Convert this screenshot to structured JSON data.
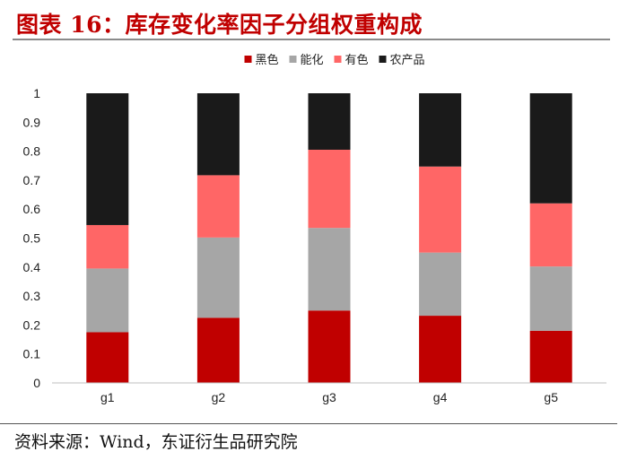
{
  "title": "图表 16：库存变化率因子分组权重构成",
  "source": "资料来源：Wind，东证衍生品研究院",
  "colors": {
    "title": "#c00000",
    "黑色": "#c00000",
    "能化": "#a6a6a6",
    "有色": "#ff6666",
    "农产品": "#1a1a1a"
  },
  "chart_data": {
    "type": "bar",
    "stacked": true,
    "title": "",
    "xlabel": "",
    "ylabel": "",
    "ylim": [
      0,
      1
    ],
    "yticks": [
      "0",
      "0.1",
      "0.2",
      "0.3",
      "0.4",
      "0.5",
      "0.6",
      "0.7",
      "0.8",
      "0.9",
      "1"
    ],
    "categories": [
      "g1",
      "g2",
      "g3",
      "g4",
      "g5"
    ],
    "legend_position": "top",
    "grid": false,
    "series": [
      {
        "name": "黑色",
        "color": "#c00000",
        "values": [
          0.175,
          0.225,
          0.25,
          0.232,
          0.18
        ]
      },
      {
        "name": "能化",
        "color": "#a6a6a6",
        "values": [
          0.22,
          0.277,
          0.285,
          0.218,
          0.222
        ]
      },
      {
        "name": "有色",
        "color": "#ff6666",
        "values": [
          0.15,
          0.215,
          0.27,
          0.297,
          0.218
        ]
      },
      {
        "name": "农产品",
        "color": "#1a1a1a",
        "values": [
          0.455,
          0.283,
          0.195,
          0.253,
          0.38
        ]
      }
    ]
  }
}
